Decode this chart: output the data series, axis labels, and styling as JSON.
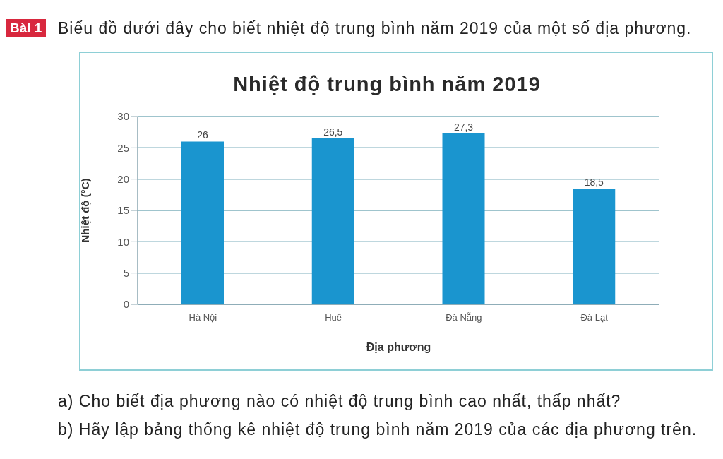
{
  "chart_data": {
    "type": "bar",
    "title": "Nhiệt độ trung bình năm 2019",
    "xlabel": "Địa phương",
    "ylabel": "Nhiệt độ (°C)",
    "categories": [
      "Hà Nội",
      "Huế",
      "Đà Nẵng",
      "Đà Lạt"
    ],
    "values": [
      26,
      26.5,
      27.3,
      18.5
    ],
    "value_labels": [
      "26",
      "26,5",
      "27,3",
      "18,5"
    ],
    "color": "#1a95cf",
    "ylim": [
      0,
      30
    ],
    "yticks": [
      0,
      5,
      10,
      15,
      20,
      25,
      30
    ],
    "grid": "y",
    "annotations": [
      "Bài 1",
      "Biểu đồ dưới đây cho biết nhiệt độ trung bình năm 2019 của một số địa phương.",
      "a) Cho biết địa phương nào có nhiệt độ trung bình cao nhất, thấp nhất?",
      "b) Hãy lập bảng thống kê nhiệt độ trung bình năm 2019 của các địa phương trên."
    ]
  }
}
